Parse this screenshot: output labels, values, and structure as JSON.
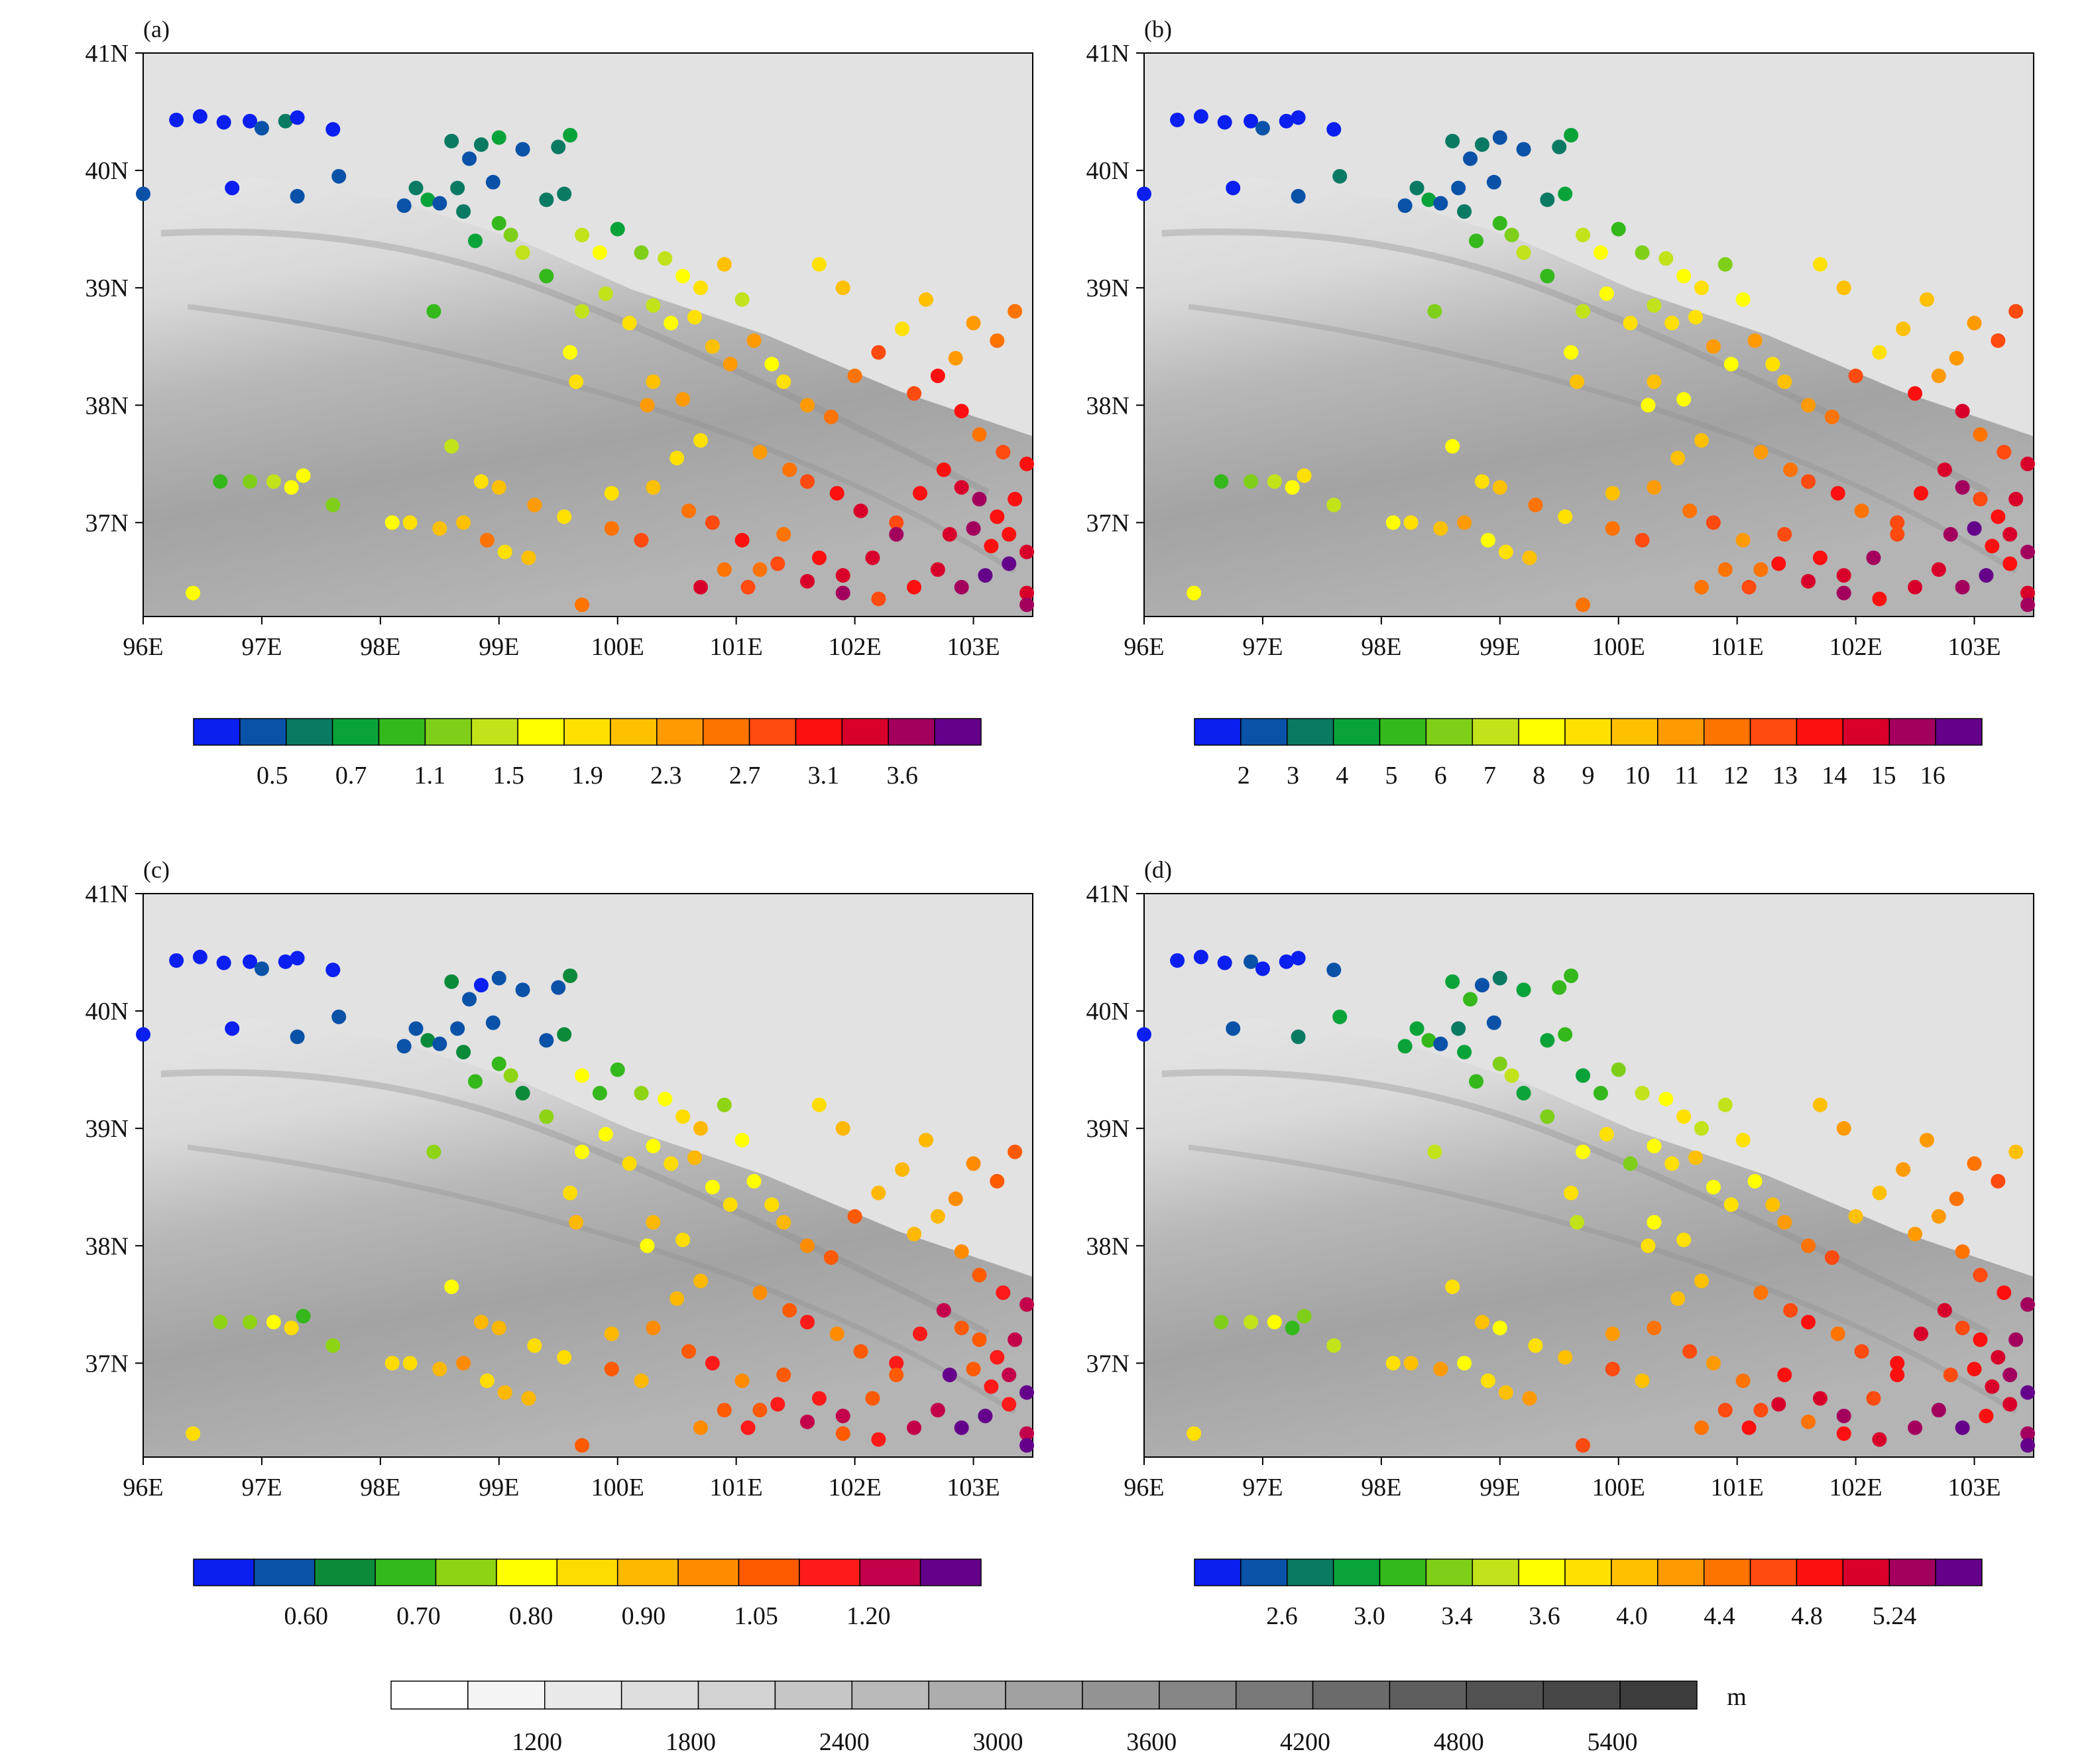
{
  "panels": [
    {
      "label": "(a)",
      "colorbar": {
        "colors": [
          "#0b1ff0",
          "#0a52a8",
          "#0b7a63",
          "#0aa33a",
          "#35b81c",
          "#7fcf1a",
          "#c2e21a",
          "#ffff00",
          "#ffe000",
          "#ffc000",
          "#ff9a00",
          "#ff7300",
          "#ff4a10",
          "#ff1010",
          "#d8002a",
          "#a3005e",
          "#65008a"
        ],
        "labels": [
          "0.5",
          "0.7",
          "1.1",
          "1.5",
          "1.9",
          "2.3",
          "2.7",
          "3.1",
          "3.6"
        ]
      }
    },
    {
      "label": "(b)",
      "colorbar": {
        "colors": [
          "#0b1ff0",
          "#0a52a8",
          "#0b7a63",
          "#0aa33a",
          "#35b81c",
          "#7fcf1a",
          "#c2e21a",
          "#ffff00",
          "#ffe000",
          "#ffc000",
          "#ff9a00",
          "#ff7300",
          "#ff4a10",
          "#ff1010",
          "#d8002a",
          "#a3005e",
          "#65008a"
        ],
        "labels": [
          "2",
          "3",
          "4",
          "5",
          "6",
          "7",
          "8",
          "9",
          "10",
          "11",
          "12",
          "13",
          "14",
          "15",
          "16"
        ]
      }
    },
    {
      "label": "(c)",
      "colorbar": {
        "colors": [
          "#0b1ff0",
          "#0a52a8",
          "#0b8a3a",
          "#35b81c",
          "#8fd414",
          "#ffff00",
          "#ffdc00",
          "#ffb800",
          "#ff8c00",
          "#ff5a00",
          "#ff1a1a",
          "#c3004a",
          "#65008a"
        ],
        "labels": [
          "0.60",
          "0.70",
          "0.80",
          "0.90",
          "1.05",
          "1.20"
        ]
      }
    },
    {
      "label": "(d)",
      "colorbar": {
        "colors": [
          "#0b1ff0",
          "#0a52a8",
          "#0b7a63",
          "#0aa33a",
          "#35b81c",
          "#7fcf1a",
          "#c2e21a",
          "#ffff00",
          "#ffe000",
          "#ffc000",
          "#ff9a00",
          "#ff7300",
          "#ff4a10",
          "#ff1010",
          "#d8002a",
          "#a3005e",
          "#65008a"
        ],
        "labels": [
          "2.6",
          "3.0",
          "3.4",
          "3.6",
          "4.0",
          "4.4",
          "4.8",
          "5.24"
        ]
      }
    }
  ],
  "map": {
    "lon_ticks": [
      "96E",
      "97E",
      "98E",
      "99E",
      "100E",
      "101E",
      "102E",
      "103E"
    ],
    "lat_ticks": [
      "41N",
      "40N",
      "39N",
      "38N",
      "37N"
    ],
    "lon_range": [
      96,
      103.5
    ],
    "lat_range": [
      36.2,
      41
    ]
  },
  "elevation_bar": {
    "colors": [
      "#ffffff",
      "#f4f4f4",
      "#e9e9e9",
      "#dedede",
      "#d2d2d2",
      "#c6c6c6",
      "#bababa",
      "#adadad",
      "#a0a0a0",
      "#939393",
      "#868686",
      "#787878",
      "#6b6b6b",
      "#5e5e5e",
      "#525252",
      "#464646",
      "#3c3c3c"
    ],
    "labels": [
      "1200",
      "1800",
      "2400",
      "3000",
      "3600",
      "4200",
      "4800",
      "5400"
    ],
    "unit": "m"
  },
  "chart_data": {
    "type": "scatter",
    "stations_lonlat": [
      [
        96.28,
        40.43
      ],
      [
        96.48,
        40.46
      ],
      [
        96.68,
        40.41
      ],
      [
        96.9,
        40.42
      ],
      [
        97.0,
        40.36
      ],
      [
        97.2,
        40.42
      ],
      [
        97.3,
        40.45
      ],
      [
        97.6,
        40.35
      ],
      [
        98.6,
        40.25
      ],
      [
        98.75,
        40.1
      ],
      [
        98.85,
        40.22
      ],
      [
        99.0,
        40.28
      ],
      [
        99.2,
        40.18
      ],
      [
        99.5,
        40.2
      ],
      [
        99.6,
        40.3
      ],
      [
        98.95,
        39.9
      ],
      [
        99.4,
        39.75
      ],
      [
        99.55,
        39.8
      ],
      [
        98.2,
        39.7
      ],
      [
        98.3,
        39.85
      ],
      [
        98.4,
        39.75
      ],
      [
        98.5,
        39.72
      ],
      [
        98.65,
        39.85
      ],
      [
        98.7,
        39.65
      ],
      [
        98.8,
        39.4
      ],
      [
        99.0,
        39.55
      ],
      [
        99.1,
        39.45
      ],
      [
        99.2,
        39.3
      ],
      [
        96.0,
        39.8
      ],
      [
        96.75,
        39.85
      ],
      [
        97.3,
        39.78
      ],
      [
        97.65,
        39.95
      ],
      [
        99.7,
        39.45
      ],
      [
        99.85,
        39.3
      ],
      [
        100.0,
        39.5
      ],
      [
        100.2,
        39.3
      ],
      [
        100.4,
        39.25
      ],
      [
        100.55,
        39.1
      ],
      [
        100.7,
        39.0
      ],
      [
        100.9,
        39.2
      ],
      [
        101.05,
        38.9
      ],
      [
        100.3,
        38.85
      ],
      [
        100.45,
        38.7
      ],
      [
        100.65,
        38.75
      ],
      [
        100.8,
        38.5
      ],
      [
        100.95,
        38.35
      ],
      [
        99.4,
        39.1
      ],
      [
        99.7,
        38.8
      ],
      [
        99.9,
        38.95
      ],
      [
        100.1,
        38.7
      ],
      [
        101.15,
        38.55
      ],
      [
        101.3,
        38.35
      ],
      [
        101.4,
        38.2
      ],
      [
        101.6,
        38.0
      ],
      [
        101.8,
        37.9
      ],
      [
        102.0,
        38.25
      ],
      [
        102.2,
        38.45
      ],
      [
        102.4,
        38.65
      ],
      [
        102.6,
        38.9
      ],
      [
        101.7,
        39.2
      ],
      [
        101.9,
        39.0
      ],
      [
        102.5,
        38.1
      ],
      [
        102.7,
        38.25
      ],
      [
        102.85,
        38.4
      ],
      [
        103.0,
        38.7
      ],
      [
        103.2,
        38.55
      ],
      [
        103.35,
        38.8
      ],
      [
        102.9,
        37.95
      ],
      [
        103.05,
        37.75
      ],
      [
        103.25,
        37.6
      ],
      [
        98.45,
        38.8
      ],
      [
        99.6,
        38.45
      ],
      [
        100.3,
        38.2
      ],
      [
        100.55,
        38.05
      ],
      [
        100.7,
        37.7
      ],
      [
        101.2,
        37.6
      ],
      [
        101.45,
        37.45
      ],
      [
        101.6,
        37.35
      ],
      [
        101.85,
        37.25
      ],
      [
        102.05,
        37.1
      ],
      [
        102.35,
        37.0
      ],
      [
        98.6,
        37.65
      ],
      [
        98.85,
        37.35
      ],
      [
        99.0,
        37.3
      ],
      [
        99.3,
        37.15
      ],
      [
        99.55,
        37.05
      ],
      [
        99.95,
        37.25
      ],
      [
        100.3,
        37.3
      ],
      [
        100.6,
        37.1
      ],
      [
        100.8,
        37.0
      ],
      [
        101.05,
        36.85
      ],
      [
        101.2,
        36.6
      ],
      [
        101.4,
        36.9
      ],
      [
        101.7,
        36.7
      ],
      [
        101.9,
        36.55
      ],
      [
        102.15,
        36.7
      ],
      [
        102.35,
        36.9
      ],
      [
        96.65,
        37.35
      ],
      [
        96.9,
        37.35
      ],
      [
        97.1,
        37.35
      ],
      [
        97.25,
        37.3
      ],
      [
        97.35,
        37.4
      ],
      [
        97.6,
        37.15
      ],
      [
        98.1,
        37.0
      ],
      [
        98.25,
        37.0
      ],
      [
        98.5,
        36.95
      ],
      [
        98.7,
        37.0
      ],
      [
        98.9,
        36.85
      ],
      [
        99.05,
        36.75
      ],
      [
        99.25,
        36.7
      ],
      [
        99.7,
        36.3
      ],
      [
        99.95,
        36.95
      ],
      [
        100.2,
        36.85
      ],
      [
        100.7,
        36.45
      ],
      [
        100.9,
        36.6
      ],
      [
        101.1,
        36.45
      ],
      [
        101.35,
        36.65
      ],
      [
        101.6,
        36.5
      ],
      [
        101.9,
        36.4
      ],
      [
        102.2,
        36.35
      ],
      [
        102.5,
        36.45
      ],
      [
        102.7,
        36.6
      ],
      [
        102.9,
        36.45
      ],
      [
        103.1,
        36.55
      ],
      [
        103.3,
        36.65
      ],
      [
        103.45,
        36.4
      ],
      [
        103.45,
        36.3
      ],
      [
        102.55,
        37.25
      ],
      [
        102.75,
        37.45
      ],
      [
        102.9,
        37.3
      ],
      [
        103.05,
        37.2
      ],
      [
        103.2,
        37.05
      ],
      [
        103.35,
        37.2
      ],
      [
        103.45,
        37.5
      ],
      [
        102.8,
        36.9
      ],
      [
        103.0,
        36.95
      ],
      [
        103.15,
        36.8
      ],
      [
        103.3,
        36.9
      ],
      [
        103.45,
        36.75
      ],
      [
        96.42,
        36.4
      ],
      [
        99.65,
        38.2
      ],
      [
        100.25,
        38.0
      ],
      [
        100.5,
        37.55
      ]
    ]
  }
}
